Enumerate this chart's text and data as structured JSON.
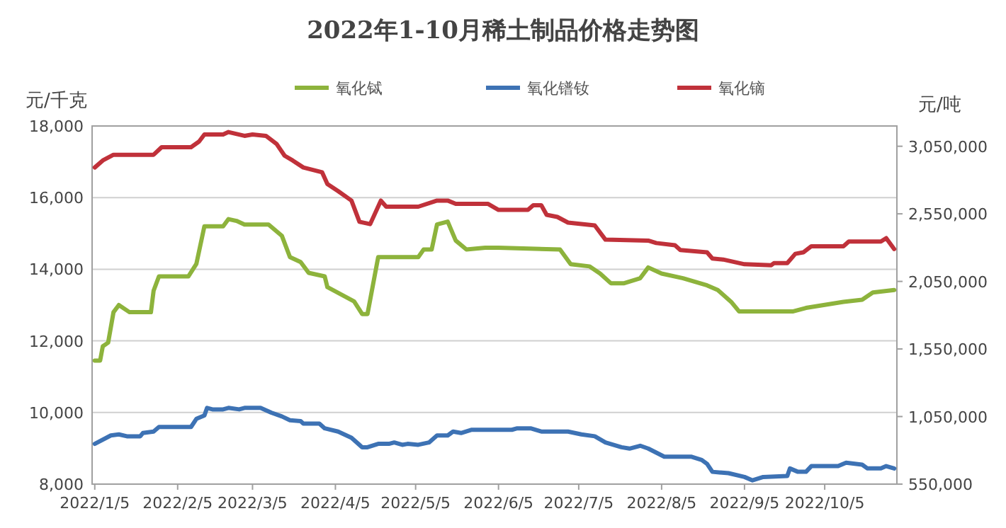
{
  "chart_data": {
    "type": "line",
    "title": "2022年1-10月稀土制品价格走势图",
    "ylabel": "元/千克",
    "y2label": "元/吨",
    "xlim": [
      "2022-01-04",
      "2022-11-01"
    ],
    "xticks": [
      {
        "value": "2022-01-05",
        "label": "2022/1/5"
      },
      {
        "value": "2022-02-05",
        "label": "2022/2/5"
      },
      {
        "value": "2022-03-05",
        "label": "2022/3/5"
      },
      {
        "value": "2022-04-05",
        "label": "2022/4/5"
      },
      {
        "value": "2022-05-05",
        "label": "2022/5/5"
      },
      {
        "value": "2022-06-05",
        "label": "2022/6/5"
      },
      {
        "value": "2022-07-05",
        "label": "2022/7/5"
      },
      {
        "value": "2022-08-05",
        "label": "2022/8/5"
      },
      {
        "value": "2022-09-05",
        "label": "2022/9/5"
      },
      {
        "value": "2022-10-05",
        "label": "2022/10/5"
      }
    ],
    "ylim": [
      8000,
      18000
    ],
    "yticks": [
      {
        "value": 8000,
        "label": "8,000"
      },
      {
        "value": 10000,
        "label": "10,000"
      },
      {
        "value": 12000,
        "label": "12,000"
      },
      {
        "value": 14000,
        "label": "14,000"
      },
      {
        "value": 16000,
        "label": "16,000"
      },
      {
        "value": 18000,
        "label": "18,000"
      }
    ],
    "y2lim": [
      550000,
      3200000
    ],
    "y2ticks": [
      {
        "value": 550000,
        "label": "550,000"
      },
      {
        "value": 1050000,
        "label": "1,050,000"
      },
      {
        "value": 1550000,
        "label": "1,550,000"
      },
      {
        "value": 2050000,
        "label": "2,050,000"
      },
      {
        "value": 2550000,
        "label": "2,550,000"
      },
      {
        "value": 3050000,
        "label": "3,050,000"
      }
    ],
    "grid": "y",
    "legend": "top",
    "series": [
      {
        "name": "氧化铽",
        "color": "#8db33c",
        "axis": "y",
        "x": [
          "2022-01-05",
          "2022-01-07",
          "2022-01-08",
          "2022-01-10",
          "2022-01-12",
          "2022-01-14",
          "2022-01-18",
          "2022-01-26",
          "2022-01-27",
          "2022-01-29",
          "2022-02-09",
          "2022-02-12",
          "2022-02-15",
          "2022-02-22",
          "2022-02-24",
          "2022-02-27",
          "2022-03-02",
          "2022-03-11",
          "2022-03-16",
          "2022-03-19",
          "2022-03-23",
          "2022-03-26",
          "2022-04-01",
          "2022-04-02",
          "2022-04-12",
          "2022-04-15",
          "2022-04-17",
          "2022-04-21",
          "2022-05-06",
          "2022-05-08",
          "2022-05-11",
          "2022-05-13",
          "2022-05-17",
          "2022-05-20",
          "2022-05-24",
          "2022-05-31",
          "2022-06-05",
          "2022-06-28",
          "2022-07-02",
          "2022-07-09",
          "2022-07-13",
          "2022-07-17",
          "2022-07-22",
          "2022-07-28",
          "2022-07-31",
          "2022-08-05",
          "2022-08-13",
          "2022-08-22",
          "2022-08-26",
          "2022-08-31",
          "2022-09-03",
          "2022-09-23",
          "2022-09-28",
          "2022-10-12",
          "2022-10-19",
          "2022-10-23",
          "2022-10-31"
        ],
        "values": [
          11450,
          11450,
          11850,
          11950,
          12800,
          13000,
          12800,
          12800,
          13400,
          13800,
          13800,
          14150,
          15200,
          15200,
          15400,
          15350,
          15250,
          15250,
          14930,
          14340,
          14200,
          13900,
          13800,
          13500,
          13100,
          12750,
          12750,
          14340,
          14340,
          14550,
          14550,
          15250,
          15330,
          14800,
          14550,
          14600,
          14600,
          14550,
          14140,
          14080,
          13880,
          13610,
          13610,
          13750,
          14050,
          13880,
          13750,
          13550,
          13420,
          13090,
          12820,
          12820,
          12920,
          13090,
          13150,
          13350,
          13420
        ]
      },
      {
        "name": "氧化镨钕",
        "color": "#3d72b4",
        "axis": "y2",
        "x": [
          "2022-01-05",
          "2022-01-11",
          "2022-01-14",
          "2022-01-17",
          "2022-01-22",
          "2022-01-23",
          "2022-01-27",
          "2022-01-29",
          "2022-02-10",
          "2022-02-12",
          "2022-02-15",
          "2022-02-16",
          "2022-02-18",
          "2022-02-22",
          "2022-02-24",
          "2022-02-28",
          "2022-03-02",
          "2022-03-08",
          "2022-03-12",
          "2022-03-16",
          "2022-03-19",
          "2022-03-23",
          "2022-03-24",
          "2022-03-30",
          "2022-04-01",
          "2022-04-06",
          "2022-04-11",
          "2022-04-15",
          "2022-04-17",
          "2022-04-21",
          "2022-04-25",
          "2022-04-27",
          "2022-04-30",
          "2022-05-02",
          "2022-05-06",
          "2022-05-10",
          "2022-05-13",
          "2022-05-17",
          "2022-05-19",
          "2022-05-22",
          "2022-05-26",
          "2022-06-10",
          "2022-06-12",
          "2022-06-17",
          "2022-06-21",
          "2022-07-01",
          "2022-07-06",
          "2022-07-11",
          "2022-07-15",
          "2022-07-21",
          "2022-07-24",
          "2022-07-28",
          "2022-07-31",
          "2022-08-06",
          "2022-08-16",
          "2022-08-20",
          "2022-08-22",
          "2022-08-24",
          "2022-08-30",
          "2022-09-05",
          "2022-09-08",
          "2022-09-12",
          "2022-09-21",
          "2022-09-22",
          "2022-09-25",
          "2022-09-28",
          "2022-09-30",
          "2022-10-10",
          "2022-10-13",
          "2022-10-19",
          "2022-10-21",
          "2022-10-26",
          "2022-10-28",
          "2022-10-31"
        ],
        "values": [
          848000,
          910000,
          918000,
          904000,
          904000,
          928000,
          939000,
          973000,
          973000,
          1033000,
          1058000,
          1114000,
          1103000,
          1103000,
          1114000,
          1103000,
          1114000,
          1114000,
          1079000,
          1051000,
          1023000,
          1016000,
          998000,
          998000,
          963000,
          939000,
          893000,
          823000,
          823000,
          848000,
          848000,
          858000,
          841000,
          848000,
          841000,
          858000,
          910000,
          910000,
          939000,
          928000,
          952000,
          952000,
          963000,
          963000,
          939000,
          939000,
          918000,
          904000,
          858000,
          823000,
          813000,
          834000,
          813000,
          753000,
          753000,
          729000,
          700000,
          641000,
          631000,
          603000,
          578000,
          603000,
          610000,
          666000,
          641000,
          641000,
          683000,
          683000,
          708000,
          694000,
          666000,
          666000,
          683000,
          666000
        ]
      },
      {
        "name": "氧化镝",
        "color": "#c0313a",
        "axis": "y2",
        "x": [
          "2022-01-05",
          "2022-01-08",
          "2022-01-12",
          "2022-01-27",
          "2022-01-30",
          "2022-02-10",
          "2022-02-13",
          "2022-02-15",
          "2022-02-22",
          "2022-02-24",
          "2022-03-02",
          "2022-03-05",
          "2022-03-10",
          "2022-03-14",
          "2022-03-17",
          "2022-03-20",
          "2022-03-24",
          "2022-03-31",
          "2022-04-02",
          "2022-04-06",
          "2022-04-11",
          "2022-04-14",
          "2022-04-18",
          "2022-04-22",
          "2022-04-24",
          "2022-05-06",
          "2022-05-13",
          "2022-05-17",
          "2022-05-20",
          "2022-06-01",
          "2022-06-05",
          "2022-06-16",
          "2022-06-18",
          "2022-06-21",
          "2022-06-23",
          "2022-06-27",
          "2022-07-01",
          "2022-07-11",
          "2022-07-15",
          "2022-07-31",
          "2022-08-03",
          "2022-08-10",
          "2022-08-12",
          "2022-08-22",
          "2022-08-24",
          "2022-08-28",
          "2022-09-05",
          "2022-09-15",
          "2022-09-16",
          "2022-09-21",
          "2022-09-24",
          "2022-09-27",
          "2022-09-30",
          "2022-10-12",
          "2022-10-14",
          "2022-10-26",
          "2022-10-28",
          "2022-10-31"
        ],
        "values": [
          2893000,
          2945000,
          2987000,
          2987000,
          3043000,
          3043000,
          3085000,
          3137000,
          3137000,
          3155000,
          3127000,
          3137000,
          3127000,
          3067000,
          2980000,
          2945000,
          2893000,
          2858000,
          2771000,
          2718000,
          2648000,
          2491000,
          2474000,
          2648000,
          2603000,
          2603000,
          2648000,
          2648000,
          2624000,
          2624000,
          2579000,
          2579000,
          2614000,
          2614000,
          2543000,
          2527000,
          2485000,
          2464000,
          2359000,
          2352000,
          2334000,
          2317000,
          2282000,
          2265000,
          2219000,
          2212000,
          2177000,
          2170000,
          2185000,
          2185000,
          2254000,
          2265000,
          2310000,
          2310000,
          2345000,
          2345000,
          2370000,
          2289000
        ]
      }
    ]
  }
}
